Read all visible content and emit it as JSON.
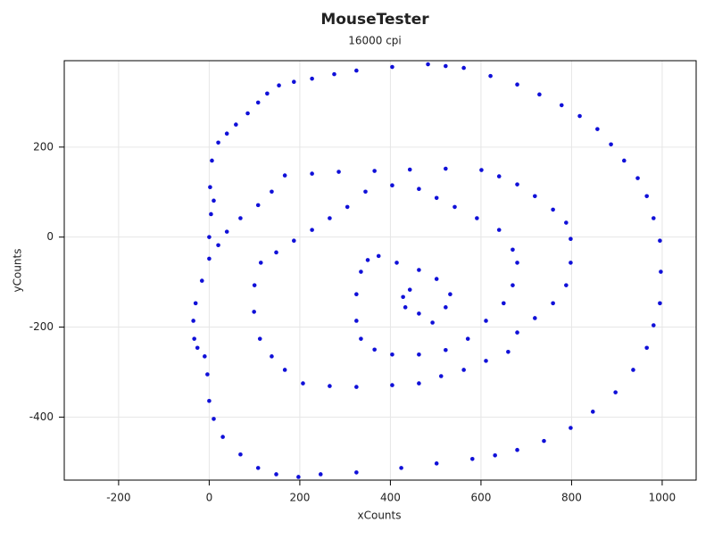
{
  "chart_data": {
    "type": "scatter",
    "title": "MouseTester",
    "subtitle": "16000 cpi",
    "x_label": "xCounts",
    "y_label": "yCounts",
    "xlim": [
      -320,
      1075
    ],
    "ylim": [
      -540,
      392
    ],
    "xticks": [
      -200,
      0,
      200,
      400,
      600,
      800,
      1000
    ],
    "yticks": [
      -400,
      -200,
      0,
      200
    ],
    "grid": true,
    "series": [
      {
        "color": "#1010d8",
        "x": [
          0,
          4,
          10,
          2,
          6,
          20,
          39,
          59,
          85,
          108,
          128,
          154,
          187,
          227,
          276,
          325,
          404,
          483,
          522,
          562,
          621,
          680,
          729,
          778,
          818,
          857,
          887,
          916,
          946,
          966,
          981,
          995,
          997,
          995,
          981,
          966,
          936,
          897,
          847,
          798,
          739,
          680,
          631,
          581,
          502,
          424,
          325,
          246,
          197,
          148,
          108,
          69,
          30,
          10,
          0,
          -4,
          -10,
          -26,
          -33,
          -35,
          -30,
          -16,
          0,
          20,
          39,
          69,
          108,
          138,
          167,
          227,
          286,
          365,
          443,
          522,
          601,
          640,
          680,
          719,
          759,
          788,
          798,
          798,
          788,
          759,
          719,
          680,
          660,
          611,
          562,
          512,
          463,
          404,
          325,
          266,
          207,
          167,
          138,
          112,
          99,
          100,
          114,
          148,
          187,
          227,
          266,
          305,
          345,
          404,
          463,
          502,
          542,
          591,
          640,
          670,
          680,
          670,
          650,
          611,
          571,
          522,
          463,
          404,
          365,
          335,
          325,
          325,
          335,
          350,
          374,
          414,
          463,
          502,
          532,
          522,
          493,
          463,
          433,
          428,
          443
        ],
        "values": [
          0,
          51,
          81,
          111,
          170,
          210,
          230,
          250,
          275,
          299,
          319,
          337,
          345,
          352,
          362,
          370,
          378,
          384,
          380,
          376,
          358,
          339,
          317,
          293,
          269,
          240,
          206,
          170,
          131,
          91,
          42,
          -8,
          -77,
          -147,
          -196,
          -246,
          -295,
          -345,
          -388,
          -424,
          -453,
          -473,
          -485,
          -493,
          -503,
          -513,
          -523,
          -527,
          -533,
          -527,
          -513,
          -483,
          -444,
          -404,
          -364,
          -305,
          -265,
          -246,
          -226,
          -186,
          -147,
          -97,
          -48,
          -18,
          12,
          42,
          71,
          101,
          137,
          141,
          145,
          147,
          150,
          152,
          149,
          135,
          117,
          91,
          61,
          32,
          -4,
          -57,
          -107,
          -147,
          -180,
          -212,
          -255,
          -275,
          -295,
          -309,
          -325,
          -329,
          -333,
          -331,
          -325,
          -295,
          -265,
          -226,
          -166,
          -107,
          -57,
          -34,
          -8,
          16,
          42,
          67,
          101,
          115,
          107,
          87,
          67,
          42,
          16,
          -28,
          -57,
          -107,
          -147,
          -186,
          -226,
          -251,
          -261,
          -261,
          -250,
          -226,
          -186,
          -127,
          -77,
          -51,
          -42,
          -57,
          -73,
          -93,
          -127,
          -156,
          -190,
          -170,
          -156,
          -133,
          -117
        ]
      }
    ]
  }
}
